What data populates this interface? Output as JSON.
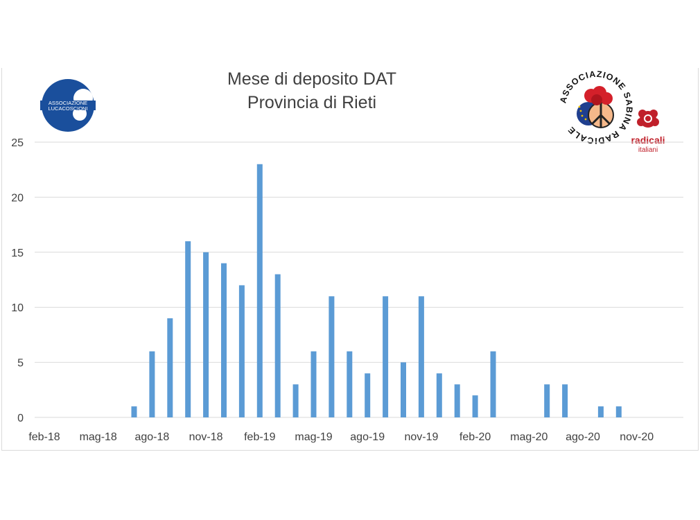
{
  "title": {
    "line1": "Mese di deposito DAT",
    "line2": "Provincia di Rieti"
  },
  "logos": {
    "luca_coscioni": "ASSOCIAZIONE LUCACOSCIONI",
    "sabina_radicale": "ASSOCIAZIONE SABINA RADICALE",
    "radicali_name": "radicali",
    "radicali_sub": "italiani"
  },
  "colors": {
    "bar": "#5b9bd5",
    "grid": "#d9d9d9",
    "text": "#404040",
    "lc_blue": "#1a4f9c",
    "radicali_red": "#c0202a"
  },
  "chart_data": {
    "type": "bar",
    "title": "Mese di deposito DAT\nProvincia di Rieti",
    "xlabel": "",
    "ylabel": "",
    "ylim": [
      0,
      25
    ],
    "yticks": [
      0,
      5,
      10,
      15,
      20,
      25
    ],
    "grid": true,
    "legend": "none",
    "x_tick_labels": [
      "feb-18",
      "mag-18",
      "ago-18",
      "nov-18",
      "feb-19",
      "mag-19",
      "ago-19",
      "nov-19",
      "feb-20",
      "mag-20",
      "ago-20",
      "nov-20"
    ],
    "categories": [
      "feb-18",
      "mar-18",
      "apr-18",
      "mag-18",
      "giu-18",
      "lug-18",
      "ago-18",
      "set-18",
      "ott-18",
      "nov-18",
      "dic-18",
      "gen-19",
      "feb-19",
      "mar-19",
      "apr-19",
      "mag-19",
      "giu-19",
      "lug-19",
      "ago-19",
      "set-19",
      "ott-19",
      "nov-19",
      "dic-19",
      "gen-20",
      "feb-20",
      "mar-20",
      "apr-20",
      "mag-20",
      "giu-20",
      "lug-20",
      "ago-20",
      "set-20",
      "ott-20",
      "nov-20",
      "dic-20"
    ],
    "values": [
      0,
      0,
      0,
      0,
      0,
      1,
      6,
      9,
      16,
      15,
      14,
      12,
      23,
      13,
      3,
      6,
      11,
      6,
      4,
      11,
      5,
      11,
      4,
      3,
      2,
      6,
      0,
      0,
      3,
      3,
      0,
      1,
      1,
      0,
      0
    ]
  }
}
